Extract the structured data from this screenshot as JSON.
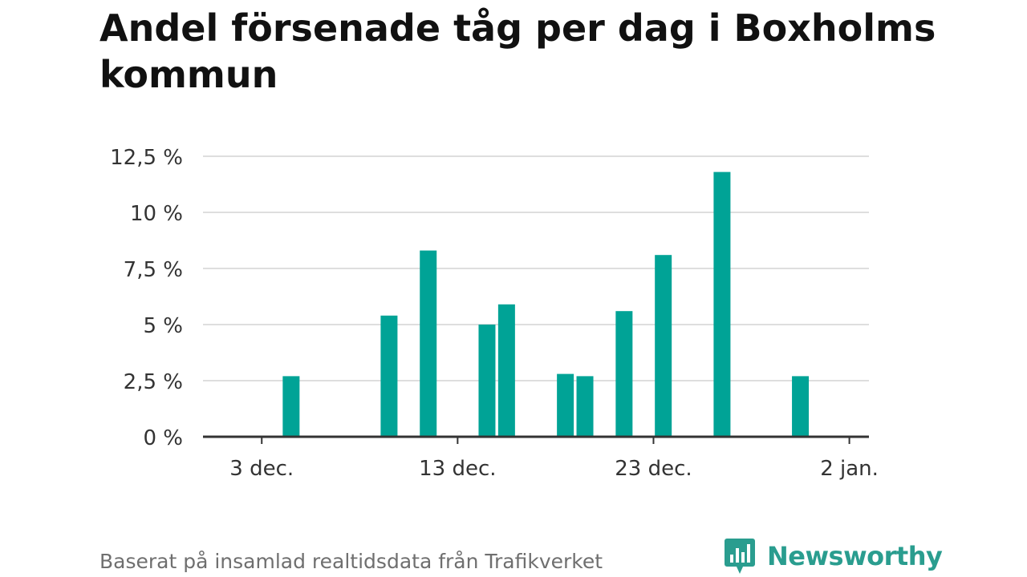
{
  "title": "Andel försenade tåg per dag i Boxholms kommun",
  "footer": {
    "source_note": "Baserat på insamlad realtidsdata från Trafikverket",
    "brand_name": "Newsworthy"
  },
  "colors": {
    "bar": "#00a396",
    "grid": "#dedede",
    "axis": "#333333",
    "brand": "#2a9d8f"
  },
  "icons": {
    "brand": "newsworthy-logo-icon"
  },
  "chart_data": {
    "type": "bar",
    "y_unit": "%",
    "ylim": [
      0,
      12.5
    ],
    "y_ticks": [
      0,
      2.5,
      5,
      7.5,
      10,
      12.5
    ],
    "y_tick_labels": [
      "0 %",
      "2,5 %",
      "5 %",
      "7,5 %",
      "10 %",
      "12,5 %"
    ],
    "x_range": [
      "2022-11-30",
      "2023-01-03"
    ],
    "x_ticks": [
      "2022-12-03",
      "2022-12-13",
      "2022-12-23",
      "2023-01-02"
    ],
    "x_tick_labels": [
      "3 dec.",
      "13 dec.",
      "23 dec.",
      "2 jan."
    ],
    "grid": true,
    "legend": "none",
    "x": [
      "2022-12-04",
      "2022-12-09",
      "2022-12-11",
      "2022-12-14",
      "2022-12-15",
      "2022-12-18",
      "2022-12-19",
      "2022-12-21",
      "2022-12-23",
      "2022-12-26",
      "2022-12-30"
    ],
    "values": [
      2.7,
      5.4,
      8.3,
      5.0,
      5.9,
      2.8,
      2.7,
      5.6,
      8.1,
      11.8,
      2.7
    ]
  }
}
